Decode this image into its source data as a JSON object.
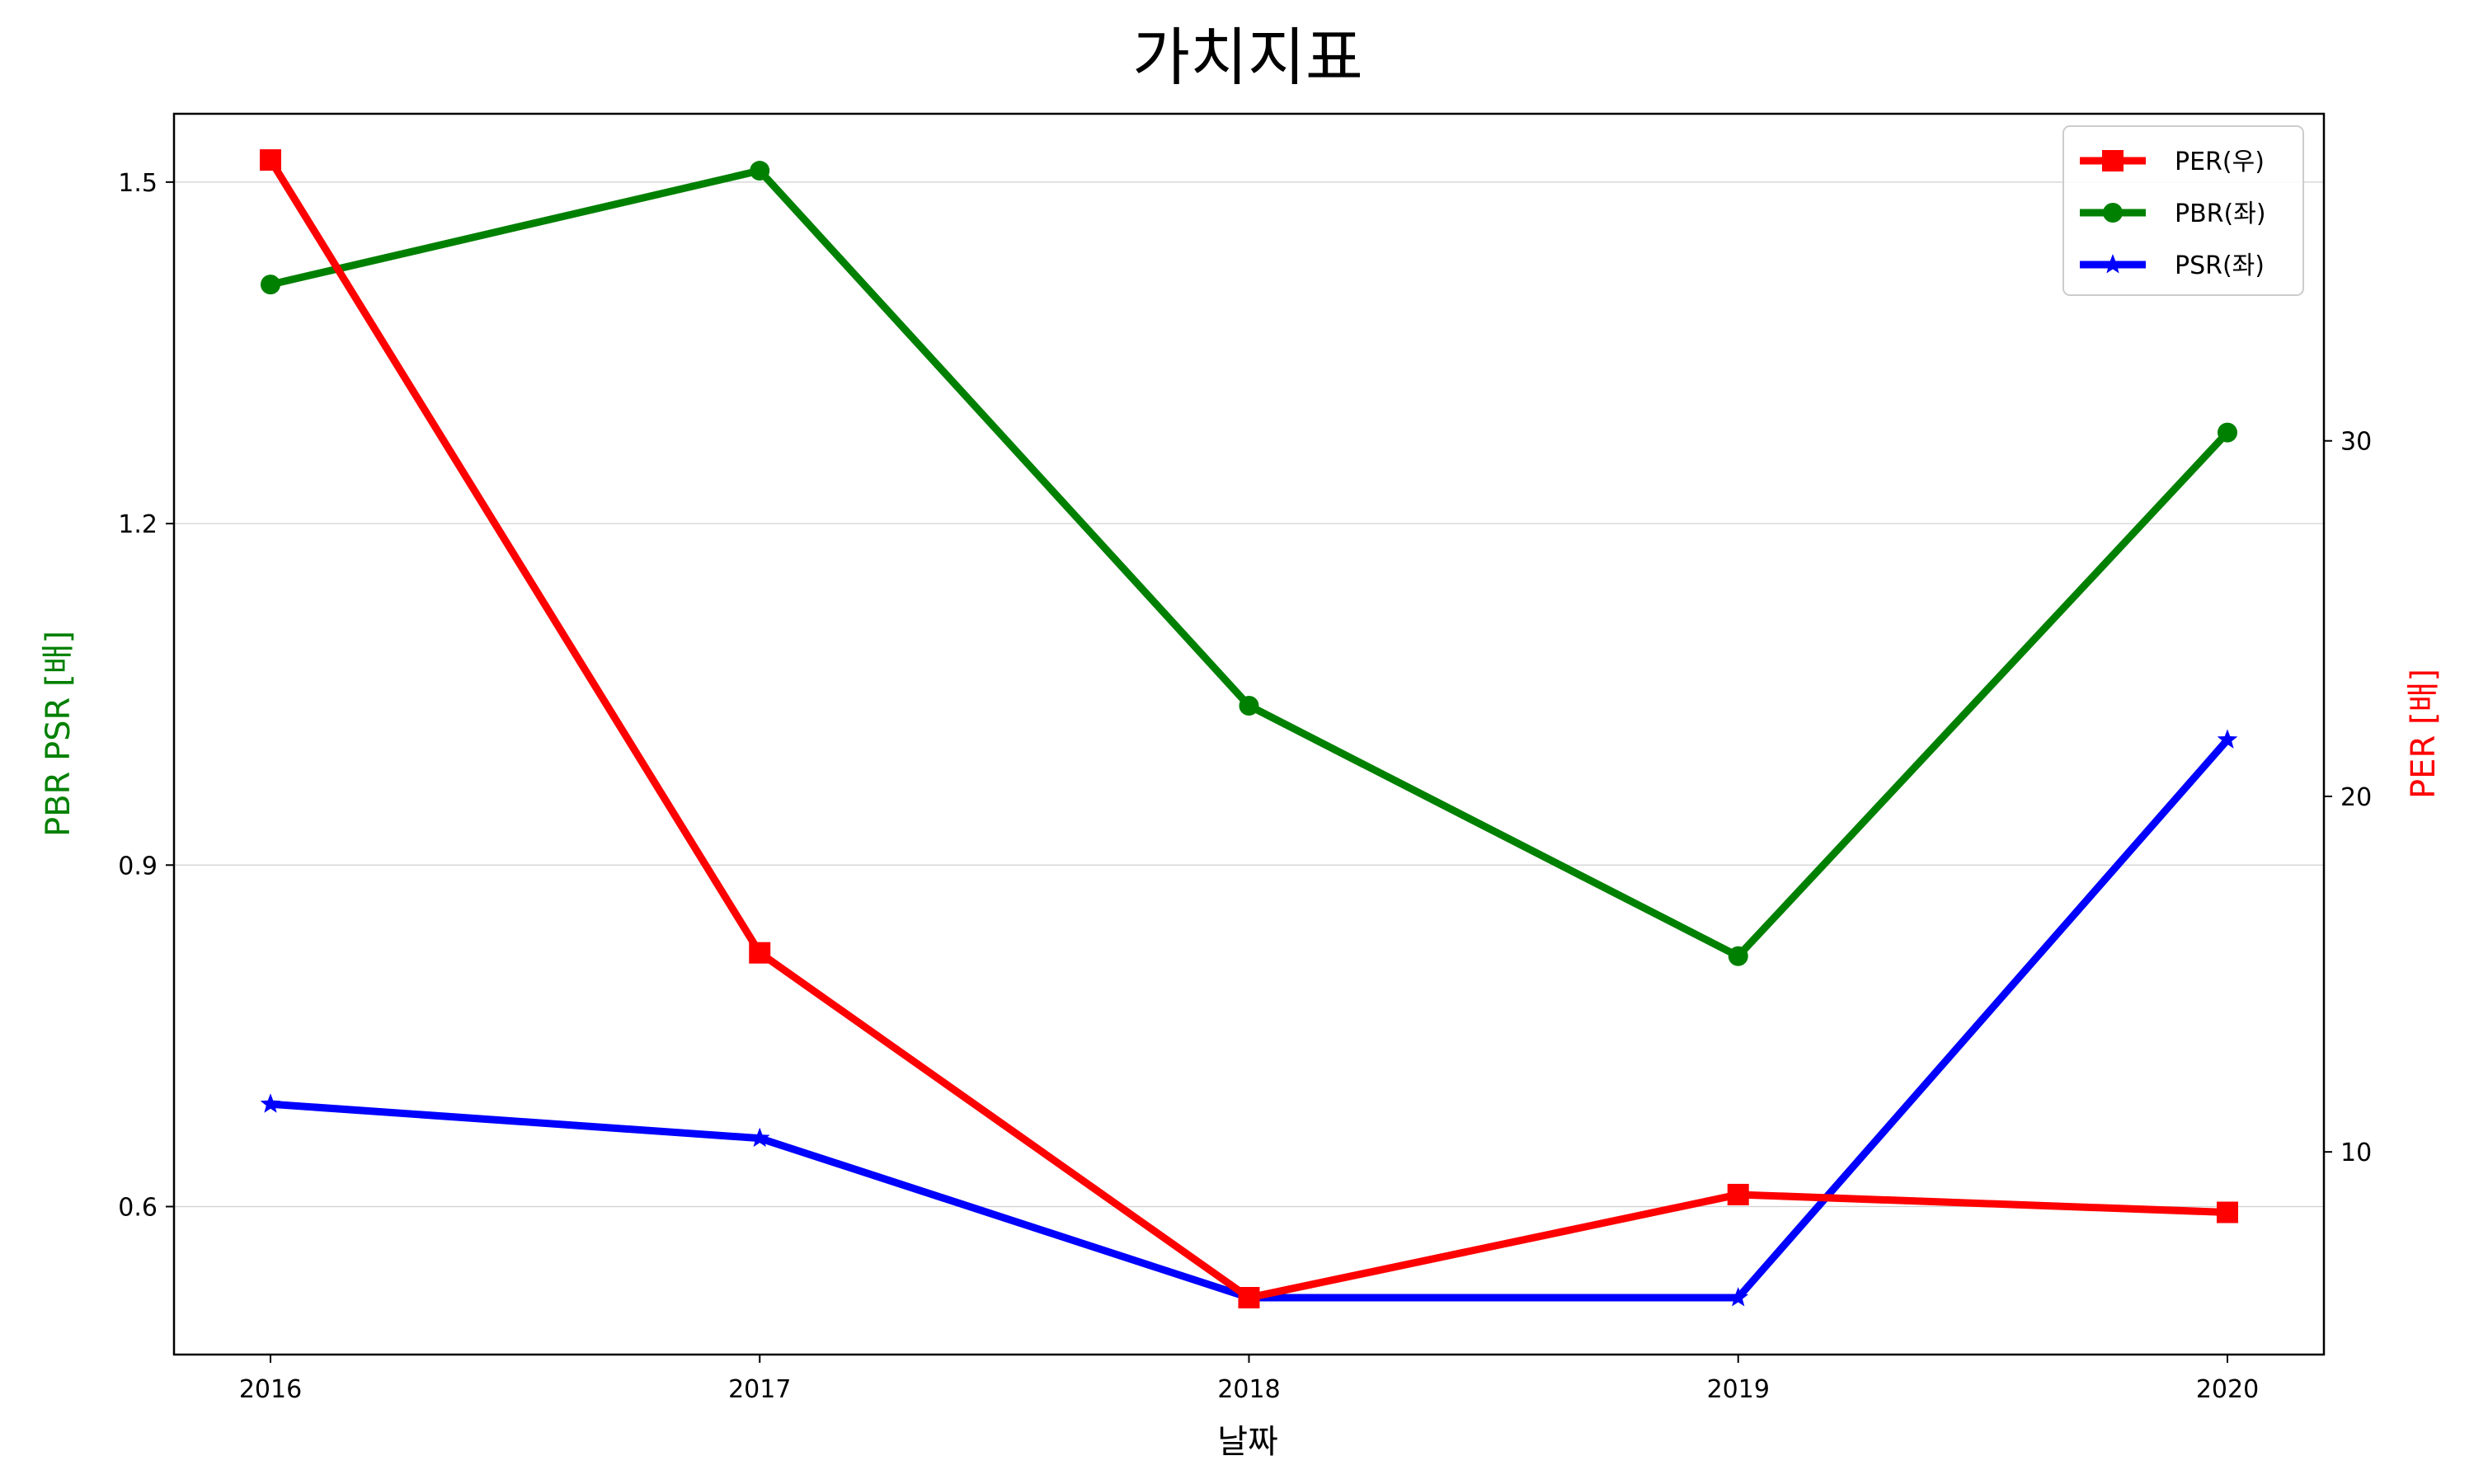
{
  "chart_data": {
    "type": "line",
    "title": "가치지표",
    "xlabel": "날짜",
    "ylabel_left": "PBR PSR [배]",
    "ylabel_right": "PER [배]",
    "categories": [
      "2016",
      "2017",
      "2018",
      "2019",
      "2020"
    ],
    "y_left_range": [
      0.47,
      1.56
    ],
    "y_left_ticks": [
      0.6,
      0.9,
      1.2,
      1.5
    ],
    "y_left_tick_labels": [
      "0.6",
      "0.9",
      "1.2",
      "1.5"
    ],
    "y_right_range": [
      4.3,
      39.2
    ],
    "y_right_ticks": [
      10,
      20,
      30
    ],
    "y_right_tick_labels": [
      "10",
      "20",
      "30"
    ],
    "grid": "horizontal, left axis",
    "legend_position": "top-right",
    "series": [
      {
        "name": "PER(우)",
        "axis": "right",
        "marker": "square",
        "color": "#ff0000",
        "values": [
          37.9,
          15.6,
          5.9,
          8.8,
          8.3
        ]
      },
      {
        "name": "PBR(좌)",
        "axis": "left",
        "marker": "circle",
        "color": "#008000",
        "values": [
          1.41,
          1.51,
          1.04,
          0.82,
          1.28
        ]
      },
      {
        "name": "PSR(좌)",
        "axis": "left",
        "marker": "star",
        "color": "#0000ff",
        "values": [
          0.69,
          0.66,
          0.52,
          0.52,
          1.01
        ]
      }
    ]
  }
}
